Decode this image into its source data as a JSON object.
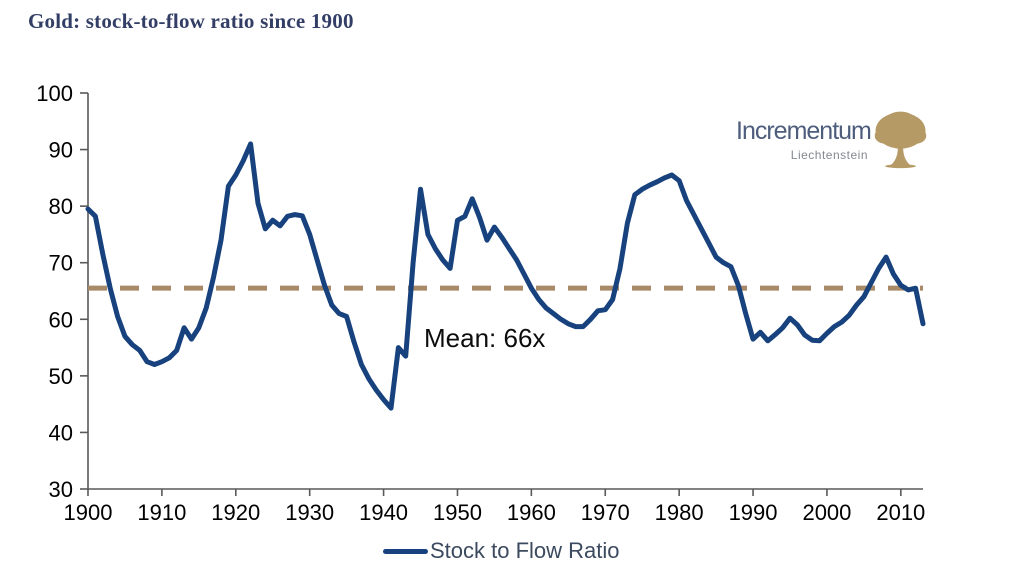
{
  "title": "Gold: stock-to-flow ratio since 1900",
  "annotation": {
    "mean_label": "Mean: 66x"
  },
  "legend": {
    "label": "Stock to Flow Ratio"
  },
  "logo": {
    "name": "Incrementum",
    "subtitle": "Liechtenstein",
    "text_color": "#4e5d7c",
    "subtitle_color": "#84888f",
    "tree_color": "#b59a66"
  },
  "colors": {
    "series": "#17427E",
    "mean_line": "#A98A68",
    "axis": "#595959",
    "tick_text": "#000000",
    "title": "#333E66"
  },
  "chart_data": {
    "type": "line",
    "title": "Gold: stock-to-flow ratio since 1900",
    "xlabel": "",
    "ylabel": "",
    "xlim": [
      1900,
      2013
    ],
    "ylim": [
      30,
      100
    ],
    "x_ticks": [
      1900,
      1910,
      1920,
      1930,
      1940,
      1950,
      1960,
      1970,
      1980,
      1990,
      2000,
      2010
    ],
    "y_ticks": [
      30,
      40,
      50,
      60,
      70,
      80,
      90,
      100
    ],
    "grid": false,
    "legend_position": "bottom",
    "mean_line": {
      "value": 65.5,
      "label": "Mean: 66x",
      "style": "dashed"
    },
    "series": [
      {
        "name": "Stock to Flow Ratio",
        "x": [
          1900,
          1901,
          1902,
          1903,
          1904,
          1905,
          1906,
          1907,
          1908,
          1909,
          1910,
          1911,
          1912,
          1913,
          1914,
          1915,
          1916,
          1917,
          1918,
          1919,
          1920,
          1921,
          1922,
          1923,
          1924,
          1925,
          1926,
          1927,
          1928,
          1929,
          1930,
          1931,
          1932,
          1933,
          1934,
          1935,
          1936,
          1937,
          1938,
          1939,
          1940,
          1941,
          1942,
          1943,
          1944,
          1945,
          1946,
          1947,
          1948,
          1949,
          1950,
          1951,
          1952,
          1953,
          1954,
          1955,
          1956,
          1957,
          1958,
          1959,
          1960,
          1961,
          1962,
          1963,
          1964,
          1965,
          1966,
          1967,
          1968,
          1969,
          1970,
          1971,
          1972,
          1973,
          1974,
          1975,
          1976,
          1977,
          1978,
          1979,
          1980,
          1981,
          1982,
          1983,
          1984,
          1985,
          1986,
          1987,
          1988,
          1989,
          1990,
          1991,
          1992,
          1993,
          1994,
          1995,
          1996,
          1997,
          1998,
          1999,
          2000,
          2001,
          2002,
          2003,
          2004,
          2005,
          2006,
          2007,
          2008,
          2009,
          2010,
          2011,
          2012,
          2013
        ],
        "values": [
          79.5,
          78.2,
          71.5,
          65.5,
          60.5,
          57,
          55.5,
          54.5,
          52.5,
          52,
          52.5,
          53.2,
          54.5,
          58.5,
          56.5,
          58.5,
          62,
          67.5,
          74,
          83.5,
          85.5,
          88,
          91,
          80.5,
          76,
          77.5,
          76.5,
          78.2,
          78.5,
          78.3,
          75,
          70.5,
          66,
          62.5,
          61,
          60.5,
          56,
          52,
          49.5,
          47.5,
          45.8,
          44.3,
          55,
          53.5,
          70,
          83,
          75,
          72.5,
          70.5,
          69,
          77.5,
          78.2,
          81.3,
          78,
          74,
          76.3,
          74.5,
          72.5,
          70.5,
          68,
          65.5,
          63.5,
          62,
          61,
          60,
          59.2,
          58.7,
          58.7,
          60,
          61.5,
          61.7,
          63.5,
          69,
          77,
          82,
          83,
          83.7,
          84.3,
          85,
          85.5,
          84.5,
          81,
          78.5,
          76,
          73.5,
          71,
          70,
          69.3,
          66,
          61,
          56.5,
          57.7,
          56.2,
          57.3,
          58.5,
          60.2,
          59,
          57.2,
          56.3,
          56.2,
          57.5,
          58.7,
          59.5,
          60.7,
          62.5,
          64,
          66.5,
          69,
          71,
          68,
          66,
          65.2,
          65.5,
          59.2
        ]
      }
    ]
  }
}
